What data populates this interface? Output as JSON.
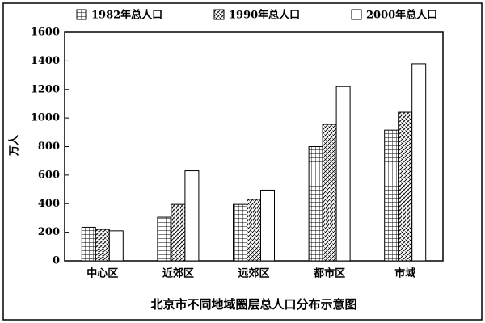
{
  "chart_data": {
    "type": "bar",
    "title": "北京市不同地域圈层总人口分布示意图",
    "y_label": "万人",
    "categories": [
      "中心区",
      "近郊区",
      "远郊区",
      "都市区",
      "市域"
    ],
    "series": [
      {
        "name": "1982年总人口",
        "color": "#000000",
        "pattern": "grid",
        "values": [
          235,
          305,
          395,
          800,
          915
        ]
      },
      {
        "name": "1990年总人口",
        "color": "#000000",
        "pattern": "diagonal",
        "values": [
          220,
          395,
          430,
          955,
          1040
        ]
      },
      {
        "name": "2000年总人口",
        "color": "#000000",
        "pattern": "none",
        "values": [
          210,
          630,
          495,
          1220,
          1380
        ]
      }
    ],
    "ylim": [
      0,
      1600
    ],
    "yticks": [
      0,
      200,
      400,
      600,
      800,
      1000,
      1200,
      1400,
      1600
    ],
    "grid": false,
    "legend": "top"
  }
}
